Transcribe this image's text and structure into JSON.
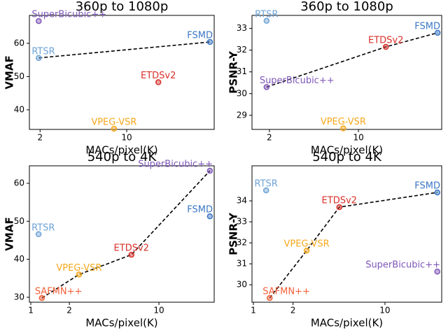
{
  "chart_data": [
    {
      "type": "scatter",
      "title": "360p to 1080p",
      "x_label": "MACs/pixel(K)",
      "y_label": "VMAF",
      "xscale": "log",
      "xlim": [
        1.64,
        50.8
      ],
      "ylim": [
        34.1,
        68.4
      ],
      "xticks": [
        2,
        10
      ],
      "yticks": [
        40,
        50,
        60
      ],
      "series": [
        {
          "name": "SuperBicubic++",
          "color": "#7e57b8",
          "x": [
            1.95
          ],
          "values": [
            66.7
          ],
          "frontier": false
        },
        {
          "name": "RTSR",
          "color": "#6fa3d6",
          "x": [
            1.95
          ],
          "values": [
            55.6
          ],
          "frontier": true
        },
        {
          "name": "VPEG-VSR",
          "color": "#f5a81c",
          "x": [
            7.9
          ],
          "values": [
            34.3
          ],
          "frontier": false
        },
        {
          "name": "ETDSv2",
          "color": "#d8302a",
          "x": [
            18
          ],
          "values": [
            48.3
          ],
          "frontier": false
        },
        {
          "name": "FSMD",
          "color": "#3a76c4",
          "x": [
            47
          ],
          "values": [
            60.4
          ],
          "frontier": true
        }
      ]
    },
    {
      "type": "scatter",
      "title": "360p to 1080p",
      "x_label": "MACs/pixel(K)",
      "y_label": "PSNR-Y",
      "xscale": "log",
      "xlim": [
        1.46,
        45
      ],
      "ylim": [
        28.35,
        33.6
      ],
      "xticks": [
        2,
        10
      ],
      "yticks": [
        29,
        30,
        31,
        32,
        33
      ],
      "series": [
        {
          "name": "RTSR",
          "color": "#6fa3d6",
          "x": [
            1.9
          ],
          "values": [
            33.35
          ],
          "frontier": false
        },
        {
          "name": "SuperBicubic++",
          "color": "#7e57b8",
          "x": [
            1.9
          ],
          "values": [
            30.3
          ],
          "frontier": true
        },
        {
          "name": "VPEG-VSR",
          "color": "#f5a81c",
          "x": [
            7.6
          ],
          "values": [
            28.4
          ],
          "frontier": false
        },
        {
          "name": "ETDSv2",
          "color": "#d8302a",
          "x": [
            16.4
          ],
          "values": [
            32.15
          ],
          "frontier": true
        },
        {
          "name": "FSMD",
          "color": "#3a76c4",
          "x": [
            41.8
          ],
          "values": [
            32.8
          ],
          "frontier": true
        }
      ]
    },
    {
      "type": "scatter",
      "title": "540p to 4K",
      "x_label": "MACs/pixel(K)",
      "y_label": "VMAF",
      "xscale": "log",
      "xlim": [
        0.975,
        27
      ],
      "ylim": [
        28.7,
        64.6
      ],
      "xticks": [
        1,
        2,
        10
      ],
      "yticks": [
        30,
        40,
        50,
        60
      ],
      "series": [
        {
          "name": "RTSR",
          "color": "#6fa3d6",
          "x": [
            1.15
          ],
          "values": [
            46.6
          ],
          "frontier": false
        },
        {
          "name": "SAFMN++",
          "color": "#f0603a",
          "x": [
            1.22
          ],
          "values": [
            29.8
          ],
          "frontier": true
        },
        {
          "name": "VPEG-VSR",
          "color": "#f5a81c",
          "x": [
            2.38
          ],
          "values": [
            36.0
          ],
          "frontier": true
        },
        {
          "name": "ETDSv2",
          "color": "#d8302a",
          "x": [
            6.1
          ],
          "values": [
            41.2
          ],
          "frontier": true
        },
        {
          "name": "FSMD",
          "color": "#3a76c4",
          "x": [
            25
          ],
          "values": [
            51.3
          ],
          "frontier": false
        },
        {
          "name": "SuperBicubic++",
          "color": "#7e57b8",
          "x": [
            25
          ],
          "values": [
            63.3
          ],
          "frontier": true
        }
      ]
    },
    {
      "type": "scatter",
      "title": "540p to 4K",
      "x_label": "MACs/pixel(K)",
      "y_label": "PSNR-Y",
      "xscale": "log",
      "xlim": [
        0.976,
        27
      ],
      "ylim": [
        29.17,
        35.67
      ],
      "xticks": [
        1,
        2,
        10
      ],
      "yticks": [
        30,
        31,
        32,
        33,
        34
      ],
      "series": [
        {
          "name": "RTSR",
          "color": "#6fa3d6",
          "x": [
            1.25
          ],
          "values": [
            34.5
          ],
          "frontier": false
        },
        {
          "name": "SAFMN++",
          "color": "#f0603a",
          "x": [
            1.33
          ],
          "values": [
            29.37
          ],
          "frontier": true
        },
        {
          "name": "VPEG-VSR",
          "color": "#f5a81c",
          "x": [
            2.54
          ],
          "values": [
            31.63
          ],
          "frontier": true
        },
        {
          "name": "ETDSv2",
          "color": "#d8302a",
          "x": [
            4.5
          ],
          "values": [
            33.7
          ],
          "frontier": true
        },
        {
          "name": "FSMD",
          "color": "#3a76c4",
          "x": [
            25
          ],
          "values": [
            34.4
          ],
          "frontier": true
        },
        {
          "name": "SuperBicubic++",
          "color": "#7e57b8",
          "x": [
            25
          ],
          "values": [
            30.63
          ],
          "frontier": false
        }
      ]
    }
  ]
}
